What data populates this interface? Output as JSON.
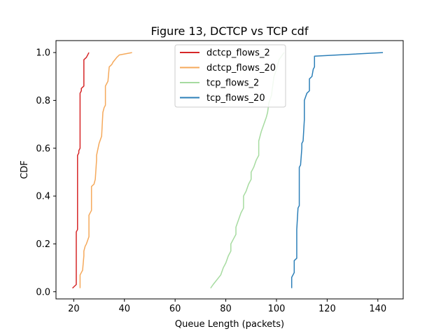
{
  "chart_data": {
    "type": "line",
    "title": "Figure 13, DCTCP vs TCP cdf",
    "xlabel": "Queue Length (packets)",
    "ylabel": "CDF",
    "xlim": [
      13,
      150
    ],
    "ylim": [
      -0.03,
      1.05
    ],
    "xticks": [
      20,
      40,
      60,
      80,
      100,
      120,
      140
    ],
    "yticks": [
      0.0,
      0.2,
      0.4,
      0.6,
      0.8,
      1.0
    ],
    "grid": false,
    "legend_position": "top-center",
    "series": [
      {
        "name": "dctcp_flows_2",
        "color": "#d62728",
        "x": [
          19.5,
          21.0,
          21.0,
          21.5,
          21.5,
          22.0,
          22.0,
          22.5,
          22.5,
          23.0,
          23.0,
          24.0,
          24.0,
          25.0,
          26.0
        ],
        "y": [
          0.015,
          0.03,
          0.25,
          0.26,
          0.57,
          0.58,
          0.59,
          0.6,
          0.83,
          0.84,
          0.85,
          0.86,
          0.97,
          0.98,
          1.0
        ]
      },
      {
        "name": "dctcp_flows_20",
        "color": "#f5a95b",
        "x": [
          22.5,
          22.5,
          23.5,
          24.0,
          24.0,
          24.5,
          25.0,
          26.0,
          26.0,
          27.0,
          27.0,
          28.0,
          28.5,
          29.0,
          29.0,
          30.0,
          31.0,
          31.5,
          32.0,
          32.5,
          32.5,
          33.0,
          33.5,
          34.0,
          35.0,
          35.5,
          37.0,
          38.0,
          43.0
        ],
        "y": [
          0.015,
          0.07,
          0.09,
          0.15,
          0.17,
          0.19,
          0.2,
          0.23,
          0.32,
          0.34,
          0.44,
          0.45,
          0.47,
          0.55,
          0.57,
          0.62,
          0.65,
          0.75,
          0.77,
          0.78,
          0.86,
          0.87,
          0.88,
          0.94,
          0.95,
          0.96,
          0.98,
          0.99,
          1.0
        ]
      },
      {
        "name": "tcp_flows_2",
        "color": "#a6dba0",
        "x": [
          74.0,
          75.0,
          78.0,
          79.0,
          80.0,
          81.0,
          82.0,
          82.0,
          83.0,
          84.0,
          84.0,
          85.0,
          86.0,
          87.0,
          87.0,
          88.0,
          89.0,
          90.0,
          90.0,
          91.0,
          92.0,
          93.0,
          93.0,
          94.0,
          95.0,
          96.0,
          96.5,
          97.0,
          98.0,
          98.5,
          99.0,
          100.0,
          101.0,
          103.0
        ],
        "y": [
          0.015,
          0.03,
          0.07,
          0.1,
          0.12,
          0.15,
          0.17,
          0.2,
          0.22,
          0.24,
          0.27,
          0.3,
          0.33,
          0.35,
          0.4,
          0.42,
          0.45,
          0.47,
          0.5,
          0.52,
          0.55,
          0.57,
          0.63,
          0.67,
          0.7,
          0.73,
          0.75,
          0.79,
          0.82,
          0.86,
          0.9,
          0.93,
          0.97,
          1.0
        ]
      },
      {
        "name": "tcp_flows_20",
        "color": "#2c7fb8",
        "x": [
          106.0,
          106.0,
          107.0,
          107.0,
          108.0,
          108.0,
          108.0,
          108.5,
          109.0,
          109.0,
          109.0,
          109.5,
          110.0,
          110.0,
          110.5,
          111.0,
          111.0,
          112.0,
          113.0,
          113.0,
          114.0,
          114.5,
          115.0,
          115.0,
          142.0
        ],
        "y": [
          0.015,
          0.06,
          0.08,
          0.13,
          0.14,
          0.2,
          0.26,
          0.35,
          0.36,
          0.47,
          0.52,
          0.53,
          0.6,
          0.62,
          0.63,
          0.72,
          0.8,
          0.83,
          0.84,
          0.89,
          0.9,
          0.93,
          0.94,
          0.985,
          1.0
        ]
      }
    ]
  }
}
